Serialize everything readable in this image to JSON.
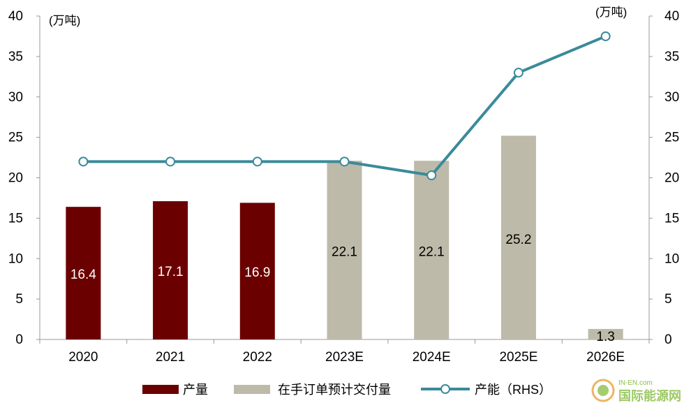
{
  "chart_data": {
    "type": "bar",
    "categories": [
      "2020",
      "2021",
      "2022",
      "2023E",
      "2024E",
      "2025E",
      "2026E"
    ],
    "series": [
      {
        "name": "产量",
        "kind": "bar",
        "axis": "left",
        "color": "#6b0000",
        "values": [
          16.4,
          17.1,
          16.9,
          null,
          null,
          null,
          null
        ],
        "labels": [
          "16.4",
          "17.1",
          "16.9",
          "",
          "",
          "",
          ""
        ],
        "label_color": "#ffffff"
      },
      {
        "name": "在手订单预计交付量",
        "kind": "bar",
        "axis": "left",
        "color": "#bdbaa9",
        "values": [
          null,
          null,
          null,
          22.1,
          22.1,
          25.2,
          1.3
        ],
        "labels": [
          "",
          "",
          "",
          "22.1",
          "22.1",
          "25.2",
          "1.3"
        ],
        "label_color": "#000000"
      },
      {
        "name": "产能（RHS）",
        "kind": "line",
        "axis": "right",
        "color": "#3b8a9a",
        "values": [
          22,
          22,
          22,
          22,
          20.3,
          33,
          37.5
        ]
      }
    ],
    "y_left": {
      "unit": "(万吨)",
      "ylim": [
        0,
        40
      ],
      "ticks": [
        0,
        5,
        10,
        15,
        20,
        25,
        30,
        35,
        40
      ]
    },
    "y_right": {
      "unit": "(万吨)",
      "ylim": [
        0,
        40
      ],
      "ticks": [
        0,
        5,
        10,
        15,
        20,
        25,
        30,
        35,
        40
      ]
    },
    "grid": false,
    "legend_position": "bottom"
  },
  "watermark": {
    "text": "国际能源网",
    "subtext": "IN-EN.com"
  }
}
